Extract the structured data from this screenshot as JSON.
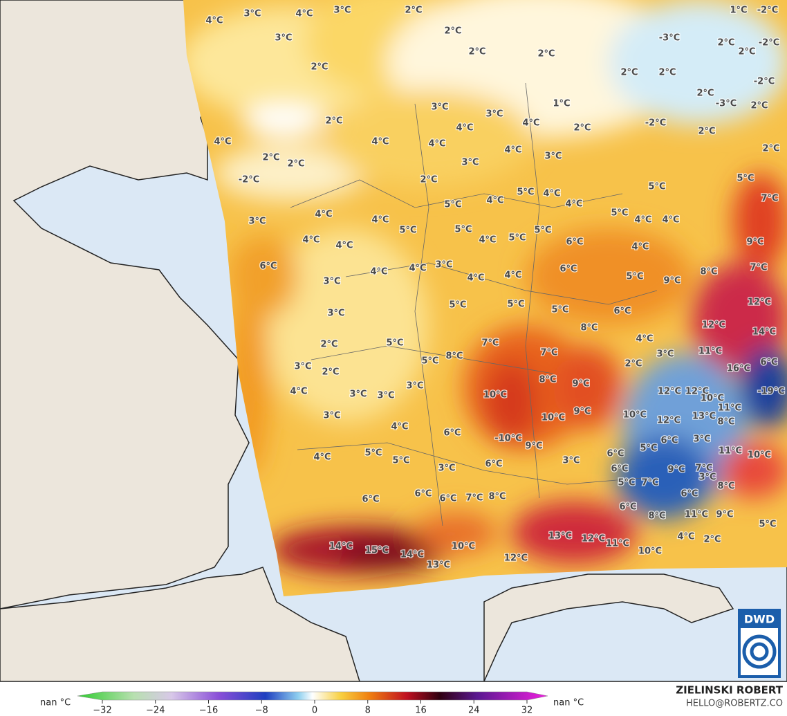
{
  "map": {
    "labels": [
      "3°C",
      "4°C",
      "3°C",
      "4°C",
      "3°C",
      "2°C",
      "2°C",
      "2°C",
      "2°C",
      "2°C",
      "1°C",
      "-2°C",
      "-3°C",
      "2°C",
      "2°C",
      "-2°C",
      "2°C",
      "2°C",
      "2°C",
      "-3°C",
      "2°C",
      "-2°C",
      "2°C",
      "-2°C",
      "2°C",
      "1°C",
      "2°C",
      "3°C",
      "3°C",
      "4°C",
      "4°C",
      "2°C",
      "4°C",
      "4°C",
      "4°C",
      "4°C",
      "3°C",
      "3°C",
      "2°C",
      "2°C",
      "-2°C",
      "2°C",
      "5°C",
      "4°C",
      "5°C",
      "5°C",
      "7°C",
      "5°C",
      "4°C",
      "4°C",
      "5°C",
      "4°C",
      "4°C",
      "3°C",
      "4°C",
      "4°C",
      "5°C",
      "5°C",
      "5°C",
      "4°C",
      "4°C",
      "4°C",
      "5°C",
      "6°C",
      "4°C",
      "9°C",
      "6°C",
      "4°C",
      "3°C",
      "4°C",
      "4°C",
      "4°C",
      "6°C",
      "5°C",
      "9°C",
      "8°C",
      "7°C",
      "3°C",
      "12°C",
      "5°C",
      "5°C",
      "5°C",
      "6°C",
      "3°C",
      "8°C",
      "12°C",
      "14°C",
      "2°C",
      "5°C",
      "7°C",
      "4°C",
      "3°C",
      "11°C",
      "8°C",
      "5°C",
      "7°C",
      "2°C",
      "16°C",
      "6°C",
      "3°C",
      "2°C",
      "8°C",
      "9°C",
      "12°C",
      "12°C",
      "10°C",
      "-19°C",
      "3°C",
      "4°C",
      "3°C",
      "3°C",
      "10°C",
      "11°C",
      "3°C",
      "10°C",
      "9°C",
      "10°C",
      "12°C",
      "13°C",
      "8°C",
      "4°C",
      "6°C",
      "-10°C",
      "9°C",
      "6°C",
      "3°C",
      "5°C",
      "4°C",
      "5°C",
      "5°C",
      "3°C",
      "6°C",
      "11°C",
      "10°C",
      "3°C",
      "6°C",
      "9°C",
      "7°C",
      "6°C",
      "3°C",
      "5°C",
      "7°C",
      "6°C",
      "8°C",
      "6°C",
      "6°C",
      "6°C",
      "7°C",
      "8°C",
      "6°C",
      "8°C",
      "11°C",
      "9°C",
      "5°C",
      "13°C",
      "12°C",
      "11°C",
      "4°C",
      "2°C",
      "14°C",
      "15°C",
      "14°C",
      "10°C",
      "10°C",
      "12°C",
      "13°C"
    ]
  },
  "colorbar": {
    "left_label": "nan °C",
    "right_label": "nan °C",
    "ticks": [
      {
        "value": -32,
        "label": "−32"
      },
      {
        "value": -24,
        "label": "−24"
      },
      {
        "value": -16,
        "label": "−16"
      },
      {
        "value": -8,
        "label": "−8"
      },
      0,
      8,
      16,
      24,
      32
    ]
  },
  "credit": {
    "name": "ZIELINSKI ROBERT",
    "email": "HELLO@ROBERTZ.CO"
  },
  "logo": "DWD"
}
